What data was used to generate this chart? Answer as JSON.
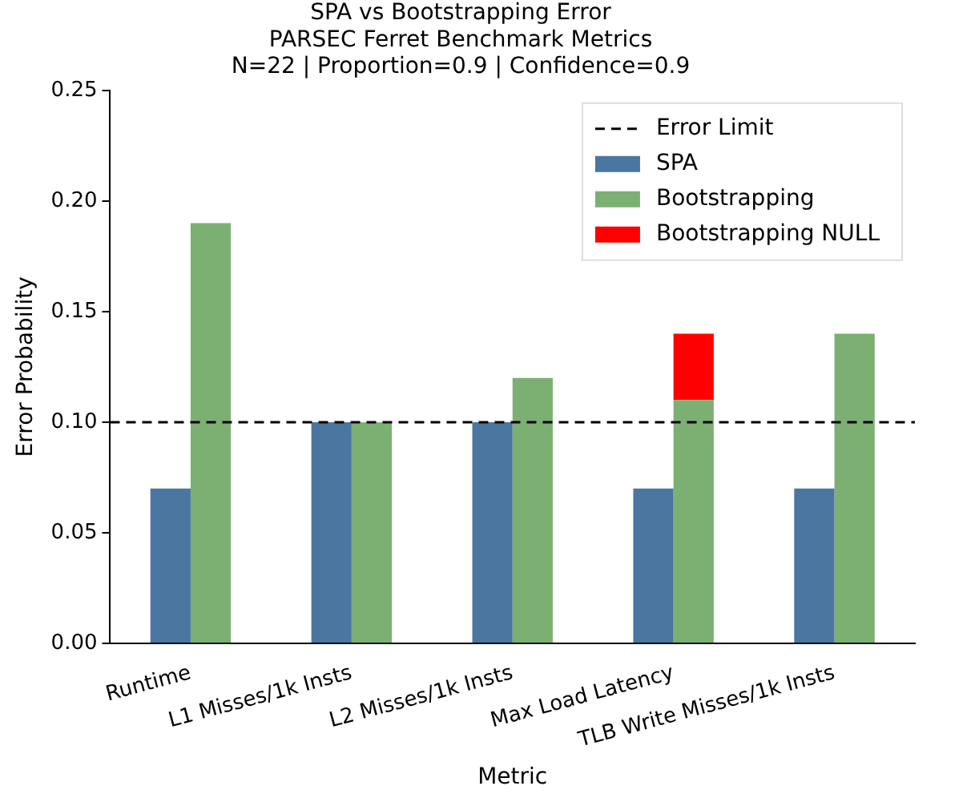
{
  "chart_data": {
    "type": "bar",
    "title": "SPA vs Bootstrapping Error\nPARSEC Ferret Benchmark Metrics\nN=22 | Proportion=0.9 | Confidence=0.9",
    "xlabel": "Metric",
    "ylabel": "Error Probability",
    "categories": [
      "Runtime",
      "L1 Misses/1k Insts",
      "L2 Misses/1k Insts",
      "Max Load Latency",
      "TLB Write Misses/1k Insts"
    ],
    "series": [
      {
        "name": "SPA",
        "color": "#4a76a0",
        "values": [
          0.07,
          0.1,
          0.1,
          0.07,
          0.07
        ]
      },
      {
        "name": "Bootstrapping",
        "color": "#7cb072",
        "values": [
          0.19,
          0.1,
          0.12,
          0.11,
          0.14
        ]
      },
      {
        "name": "Bootstrapping NULL",
        "color": "#ff0000",
        "values": [
          null,
          null,
          null,
          0.03,
          null
        ],
        "base": [
          null,
          null,
          null,
          0.11,
          null
        ]
      }
    ],
    "ylim": [
      0,
      0.25
    ],
    "yticks": [
      {
        "value": 0,
        "label": "0.00"
      },
      {
        "value": 0.05,
        "label": "0.05"
      },
      {
        "value": 0.1,
        "label": "0.10"
      },
      {
        "value": 0.15,
        "label": "0.15"
      },
      {
        "value": 0.2,
        "label": "0.20"
      },
      {
        "value": 0.25,
        "label": "0.25"
      }
    ],
    "ref_lines": [
      {
        "axis": "y",
        "value": 0.1,
        "label": "Error Limit",
        "color": "#000000",
        "line_style": "dashed"
      }
    ],
    "legend": "top right",
    "grid": false
  }
}
